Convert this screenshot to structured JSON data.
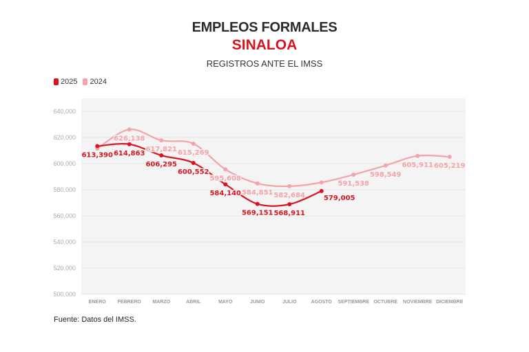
{
  "header": {
    "title": "EMPLEOS FORMALES",
    "subtitle": "SINALOA",
    "description": "REGISTROS ANTE EL IMSS"
  },
  "footer": {
    "source": "Fuente: Datos del IMSS."
  },
  "chart_data": {
    "type": "line",
    "title": "EMPLEOS FORMALES",
    "subtitle": "SINALOA",
    "xlabel": "",
    "ylabel": "",
    "categories": [
      "ENERO",
      "FEBRERO",
      "MARZO",
      "ABRIL",
      "MAYO",
      "JUNIO",
      "JULIO",
      "AGOSTO",
      "SEPTIEMBRE",
      "OCTUBRE",
      "NOVIEMBRE",
      "DICIEMBRE"
    ],
    "ylim": [
      500000,
      650000
    ],
    "yticks": [
      "500,000",
      "520,000",
      "540,000",
      "560,000",
      "580,000",
      "600,000",
      "620,000",
      "640,000"
    ],
    "ytick_values": [
      500000,
      520000,
      540000,
      560000,
      580000,
      600000,
      620000,
      640000
    ],
    "grid": true,
    "legend": "top-left",
    "series": [
      {
        "name": "2025",
        "color": "#d7141f",
        "values": [
          613390,
          614863,
          606295,
          600552,
          584140,
          569151,
          568911,
          579005,
          null,
          null,
          null,
          null
        ],
        "labels": [
          "613,390",
          "614,863",
          "606,295",
          "600,552",
          "584,140",
          "569,151",
          "568,911",
          "579,005",
          null,
          null,
          null,
          null
        ]
      },
      {
        "name": "2024",
        "color": "#f4a3a8",
        "values": [
          611500,
          626138,
          617821,
          615269,
          595608,
          584851,
          582684,
          585600,
          591538,
          598549,
          605911,
          605219
        ],
        "labels": [
          null,
          "626,138",
          "617,821",
          "615,269",
          "595,608",
          "584,851",
          "582,684",
          null,
          "591,538",
          "598,549",
          "605,911",
          "605,219"
        ]
      }
    ],
    "plot_background": "#f4f4f4"
  }
}
